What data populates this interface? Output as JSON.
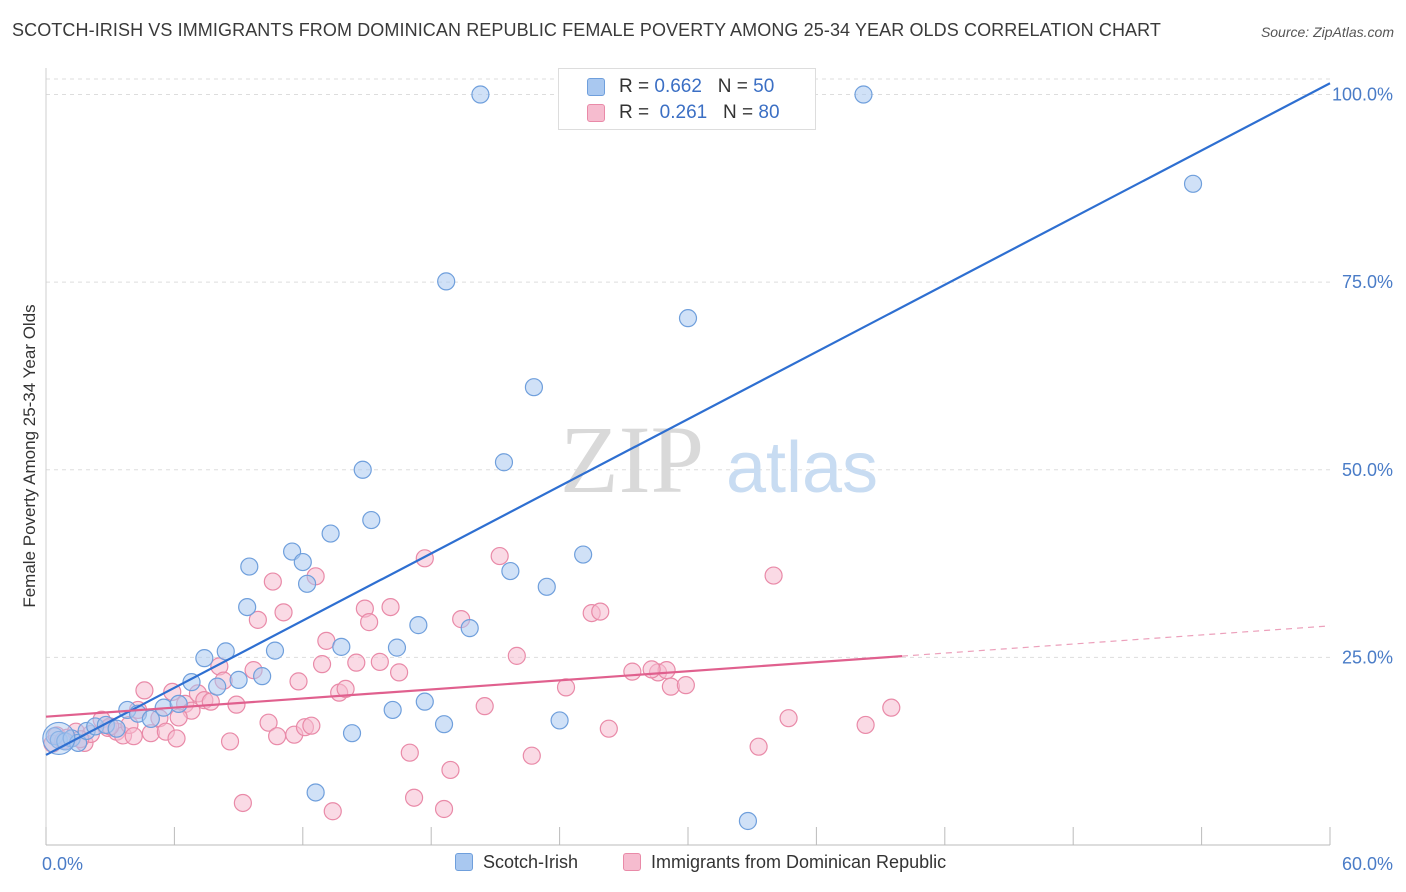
{
  "title": "SCOTCH-IRISH VS IMMIGRANTS FROM DOMINICAN REPUBLIC FEMALE POVERTY AMONG 25-34 YEAR OLDS CORRELATION CHART",
  "source": "Source: ZipAtlas.com",
  "watermark": {
    "zip": "ZIP",
    "atlas": "atlas"
  },
  "legend_stats": [
    {
      "r_label": "R = ",
      "r_value": "0.662",
      "n_label": "N = ",
      "n_value": "50"
    },
    {
      "r_label": "R = ",
      "r_value": "0.261",
      "n_label": "N = ",
      "n_value": "80"
    }
  ],
  "colors": {
    "blue_fill": "#a9c8f0",
    "blue_stroke": "#6f9fdc",
    "blue_line": "#2e6fd1",
    "pink_fill": "#f6bccf",
    "pink_stroke": "#e98aa8",
    "pink_line": "#e0608e",
    "tick_label": "#4a7cc7",
    "grid": "#dddddd"
  },
  "chart_data": {
    "type": "scatter",
    "title": "SCOTCH-IRISH VS IMMIGRANTS FROM DOMINICAN REPUBLIC FEMALE POVERTY AMONG 25-34 YEAR OLDS CORRELATION CHART",
    "xlabel": "",
    "ylabel": "Female Poverty Among 25-34 Year Olds",
    "xlim": [
      0,
      60
    ],
    "ylim": [
      0,
      103
    ],
    "x_tick_labels": [
      "0.0%",
      "60.0%"
    ],
    "y_ticks": [
      25,
      50,
      75,
      100
    ],
    "y_tick_labels": [
      "25.0%",
      "50.0%",
      "75.0%",
      "100.0%"
    ],
    "grid": true,
    "series": [
      {
        "name": "Scotch-Irish",
        "color": "blue",
        "r": 0.662,
        "n": 50,
        "trend": {
          "x0": 0,
          "y0": 12.0,
          "x1": 60,
          "y1": 101.5,
          "solid_until": 60
        },
        "points": [
          [
            0.4,
            14.5
          ],
          [
            0.6,
            14.0
          ],
          [
            0.9,
            13.8
          ],
          [
            1.2,
            14.2
          ],
          [
            1.5,
            13.6
          ],
          [
            1.9,
            15.2
          ],
          [
            2.3,
            15.8
          ],
          [
            2.8,
            16.0
          ],
          [
            3.3,
            15.5
          ],
          [
            3.8,
            18.0
          ],
          [
            4.3,
            17.5
          ],
          [
            4.9,
            16.8
          ],
          [
            5.5,
            18.3
          ],
          [
            6.2,
            18.8
          ],
          [
            6.8,
            21.7
          ],
          [
            7.4,
            24.9
          ],
          [
            8.0,
            21.1
          ],
          [
            8.4,
            25.8
          ],
          [
            9.0,
            22.0
          ],
          [
            9.4,
            31.7
          ],
          [
            9.5,
            37.1
          ],
          [
            10.1,
            22.5
          ],
          [
            10.7,
            25.9
          ],
          [
            11.5,
            39.1
          ],
          [
            12.0,
            37.7
          ],
          [
            12.2,
            34.8
          ],
          [
            12.6,
            7.0
          ],
          [
            13.3,
            41.5
          ],
          [
            13.8,
            26.4
          ],
          [
            14.3,
            14.9
          ],
          [
            14.8,
            50.0
          ],
          [
            15.2,
            43.3
          ],
          [
            16.2,
            18.0
          ],
          [
            16.4,
            26.3
          ],
          [
            17.4,
            29.3
          ],
          [
            17.7,
            19.1
          ],
          [
            18.6,
            16.1
          ],
          [
            18.7,
            75.1
          ],
          [
            19.8,
            28.9
          ],
          [
            20.3,
            100.0
          ],
          [
            21.4,
            51.0
          ],
          [
            21.7,
            36.5
          ],
          [
            22.8,
            61.0
          ],
          [
            23.4,
            34.4
          ],
          [
            24.0,
            16.6
          ],
          [
            25.1,
            38.7
          ],
          [
            30.0,
            70.2
          ],
          [
            32.8,
            3.2
          ],
          [
            38.2,
            100.0
          ],
          [
            53.6,
            88.1
          ]
        ]
      },
      {
        "name": "Immigrants from Dominican Republic",
        "color": "pink",
        "r": 0.261,
        "n": 80,
        "trend": {
          "x0": 0,
          "y0": 17.1,
          "x1": 60,
          "y1": 29.2,
          "solid_until": 40
        },
        "points": [
          [
            0.3,
            13.5
          ],
          [
            0.5,
            14.6
          ],
          [
            0.8,
            13.9
          ],
          [
            1.0,
            14.3
          ],
          [
            1.4,
            15.1
          ],
          [
            1.8,
            13.6
          ],
          [
            2.1,
            14.8
          ],
          [
            2.6,
            16.7
          ],
          [
            2.9,
            15.6
          ],
          [
            3.3,
            15.1
          ],
          [
            3.6,
            14.6
          ],
          [
            3.9,
            16.0
          ],
          [
            4.3,
            18.0
          ],
          [
            4.6,
            20.6
          ],
          [
            4.9,
            14.9
          ],
          [
            5.3,
            16.9
          ],
          [
            5.6,
            15.1
          ],
          [
            5.9,
            20.4
          ],
          [
            6.1,
            14.2
          ],
          [
            6.5,
            18.8
          ],
          [
            6.8,
            17.9
          ],
          [
            7.1,
            20.2
          ],
          [
            7.4,
            19.3
          ],
          [
            7.7,
            19.1
          ],
          [
            8.1,
            23.8
          ],
          [
            8.3,
            21.9
          ],
          [
            8.6,
            13.8
          ],
          [
            8.9,
            18.7
          ],
          [
            9.2,
            5.6
          ],
          [
            9.7,
            23.3
          ],
          [
            9.9,
            30.0
          ],
          [
            10.4,
            16.3
          ],
          [
            10.6,
            35.1
          ],
          [
            10.8,
            14.5
          ],
          [
            11.1,
            31.0
          ],
          [
            11.6,
            14.7
          ],
          [
            11.8,
            21.8
          ],
          [
            12.1,
            15.7
          ],
          [
            12.6,
            35.8
          ],
          [
            12.9,
            24.1
          ],
          [
            13.1,
            27.2
          ],
          [
            13.4,
            4.5
          ],
          [
            13.7,
            20.3
          ],
          [
            14.0,
            20.8
          ],
          [
            14.5,
            24.3
          ],
          [
            14.9,
            31.5
          ],
          [
            15.1,
            29.7
          ],
          [
            15.6,
            24.4
          ],
          [
            16.1,
            31.7
          ],
          [
            16.5,
            23.0
          ],
          [
            17.0,
            12.3
          ],
          [
            17.2,
            6.3
          ],
          [
            17.7,
            38.2
          ],
          [
            18.6,
            4.8
          ],
          [
            18.9,
            10.0
          ],
          [
            19.4,
            30.1
          ],
          [
            20.5,
            18.5
          ],
          [
            21.2,
            38.5
          ],
          [
            22.0,
            25.2
          ],
          [
            22.7,
            11.9
          ],
          [
            24.3,
            21.0
          ],
          [
            25.5,
            30.9
          ],
          [
            25.9,
            31.1
          ],
          [
            26.3,
            15.5
          ],
          [
            27.4,
            23.1
          ],
          [
            28.6,
            23.0
          ],
          [
            29.0,
            23.3
          ],
          [
            29.2,
            21.1
          ],
          [
            29.9,
            21.3
          ],
          [
            33.3,
            13.1
          ],
          [
            34.0,
            35.9
          ],
          [
            34.7,
            16.9
          ],
          [
            38.3,
            16.0
          ],
          [
            39.5,
            18.3
          ],
          [
            28.3,
            23.4
          ],
          [
            12.4,
            15.9
          ],
          [
            4.1,
            14.5
          ],
          [
            6.2,
            17.0
          ],
          [
            3.0,
            15.8
          ],
          [
            1.6,
            14.1
          ]
        ]
      }
    ]
  }
}
